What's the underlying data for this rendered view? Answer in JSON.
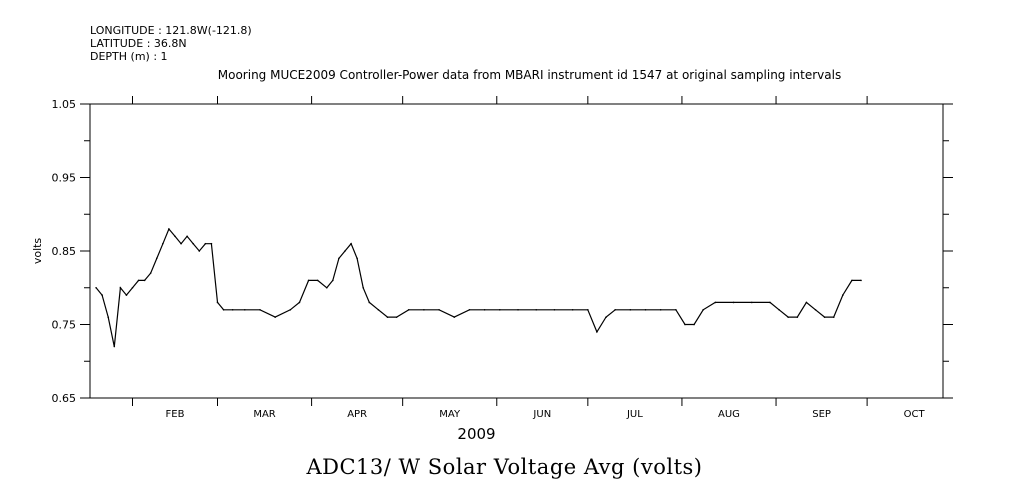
{
  "header": {
    "longitude": "LONGITUDE : 121.8W(-121.8)",
    "latitude": "LATITUDE : 36.8N",
    "depth": "DEPTH (m) : 1"
  },
  "plot_title": "Mooring MUCE2009 Controller-Power data from MBARI instrument id 1547 at original sampling intervals",
  "bottom_title": "ADC13/ W Solar Voltage Avg (volts)",
  "chart_data": {
    "type": "line",
    "title": "Mooring MUCE2009 Controller-Power data from MBARI instrument id 1547 at original sampling intervals",
    "xlabel": "2009",
    "ylabel": "volts",
    "ylim": [
      0.65,
      1.05
    ],
    "yticks": [
      0.65,
      0.75,
      0.85,
      0.95,
      1.05
    ],
    "ytick_labels": [
      "0.65",
      "0.75",
      "0.85",
      "0.95",
      "1.05"
    ],
    "xlim": [
      "2009-01-18",
      "2009-10-26"
    ],
    "months": [
      "FEB",
      "MAR",
      "APR",
      "MAY",
      "JUN",
      "JUL",
      "AUG",
      "SEP",
      "OCT"
    ],
    "month_boundaries": [
      "2009-02-01",
      "2009-03-01",
      "2009-04-01",
      "2009-05-01",
      "2009-06-01",
      "2009-07-01",
      "2009-08-01",
      "2009-09-01",
      "2009-10-01"
    ],
    "series": [
      {
        "x": [
          "2009-01-20",
          "2009-01-22",
          "2009-01-24",
          "2009-01-26",
          "2009-01-28",
          "2009-01-30",
          "2009-02-01",
          "2009-02-03",
          "2009-02-05",
          "2009-02-07",
          "2009-02-09",
          "2009-02-11",
          "2009-02-13",
          "2009-02-15",
          "2009-02-17",
          "2009-02-19",
          "2009-02-21",
          "2009-02-23",
          "2009-02-25",
          "2009-02-27",
          "2009-03-01",
          "2009-03-03",
          "2009-03-06",
          "2009-03-10",
          "2009-03-15",
          "2009-03-20",
          "2009-03-25",
          "2009-03-28",
          "2009-03-31",
          "2009-04-03",
          "2009-04-06",
          "2009-04-08",
          "2009-04-10",
          "2009-04-12",
          "2009-04-14",
          "2009-04-16",
          "2009-04-18",
          "2009-04-20",
          "2009-04-23",
          "2009-04-26",
          "2009-04-29",
          "2009-05-03",
          "2009-05-08",
          "2009-05-13",
          "2009-05-18",
          "2009-05-23",
          "2009-05-28",
          "2009-06-02",
          "2009-06-08",
          "2009-06-14",
          "2009-06-20",
          "2009-06-26",
          "2009-07-01",
          "2009-07-04",
          "2009-07-07",
          "2009-07-10",
          "2009-07-15",
          "2009-07-20",
          "2009-07-25",
          "2009-07-30",
          "2009-08-02",
          "2009-08-05",
          "2009-08-08",
          "2009-08-12",
          "2009-08-18",
          "2009-08-24",
          "2009-08-30",
          "2009-09-02",
          "2009-09-05",
          "2009-09-08",
          "2009-09-11",
          "2009-09-14",
          "2009-09-17",
          "2009-09-20",
          "2009-09-23",
          "2009-09-26",
          "2009-09-29"
        ],
        "values": [
          0.8,
          0.79,
          0.76,
          0.72,
          0.8,
          0.79,
          0.8,
          0.81,
          0.81,
          0.82,
          0.84,
          0.86,
          0.88,
          0.87,
          0.86,
          0.87,
          0.86,
          0.85,
          0.86,
          0.86,
          0.78,
          0.77,
          0.77,
          0.77,
          0.77,
          0.76,
          0.77,
          0.78,
          0.81,
          0.81,
          0.8,
          0.81,
          0.84,
          0.85,
          0.86,
          0.84,
          0.8,
          0.78,
          0.77,
          0.76,
          0.76,
          0.77,
          0.77,
          0.77,
          0.76,
          0.77,
          0.77,
          0.77,
          0.77,
          0.77,
          0.77,
          0.77,
          0.77,
          0.74,
          0.76,
          0.77,
          0.77,
          0.77,
          0.77,
          0.77,
          0.75,
          0.75,
          0.77,
          0.78,
          0.78,
          0.78,
          0.78,
          0.77,
          0.76,
          0.76,
          0.78,
          0.77,
          0.76,
          0.76,
          0.79,
          0.81,
          0.81
        ]
      }
    ]
  }
}
